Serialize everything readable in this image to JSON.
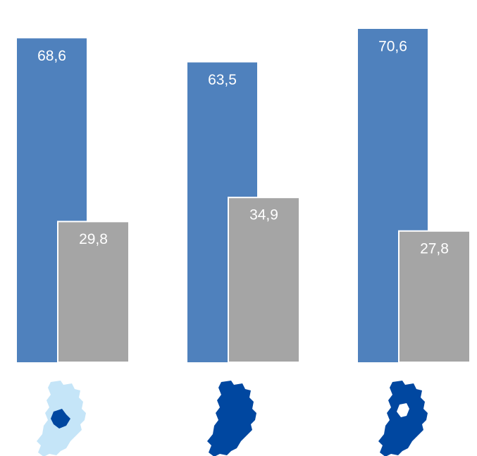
{
  "chart_data": {
    "type": "bar",
    "categories": [
      null,
      null,
      null
    ],
    "series": [
      {
        "color": "#4f81bd",
        "values": [
          68.6,
          63.5,
          70.6
        ],
        "value_labels": [
          "68,6",
          "63,5",
          "70,6"
        ]
      },
      {
        "color": "#a5a5a5",
        "values": [
          29.8,
          34.9,
          27.8
        ],
        "value_labels": [
          "29,8",
          "34,9",
          "27,8"
        ]
      }
    ]
  }
}
